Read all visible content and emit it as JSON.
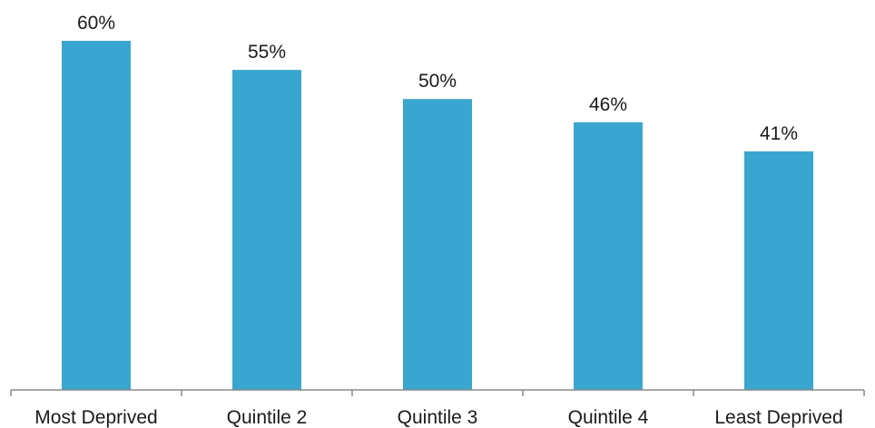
{
  "chart_data": {
    "type": "bar",
    "categories": [
      "Most Deprived",
      "Quintile 2",
      "Quintile 3",
      "Quintile 4",
      "Least Deprived"
    ],
    "values": [
      60,
      55,
      50,
      46,
      41
    ],
    "data_labels": [
      "60%",
      "55%",
      "50%",
      "46%",
      "41%"
    ],
    "title": "",
    "xlabel": "",
    "ylabel": "",
    "ylim": [
      0,
      60
    ],
    "grid": false,
    "legend": "none",
    "bar_color": "#3aa6cf"
  }
}
